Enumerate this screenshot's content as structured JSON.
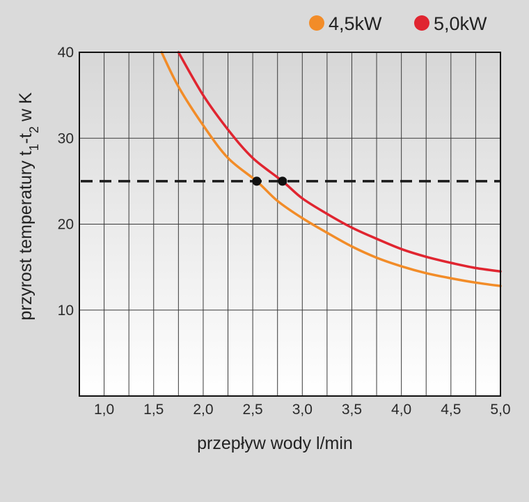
{
  "chart_data": {
    "type": "line",
    "xlabel": "przepływ wody l/min",
    "ylabel": {
      "text_1": "przyrost temperatury t",
      "sub_1": "1",
      "dash": "-t",
      "sub_2": "2",
      "text_2": " w K"
    },
    "xlim": [
      0.75,
      5.0
    ],
    "ylim": [
      0,
      40
    ],
    "x_ticks": [
      "1,0",
      "1,5",
      "2,0",
      "2,5",
      "3,0",
      "3,5",
      "4,0",
      "4,5",
      "5,0"
    ],
    "y_ticks": [
      "10",
      "20",
      "30",
      "40"
    ],
    "grid": "vertical every 0.25 l/min, horizontal every 10 K",
    "legend_position": "top-right",
    "series": [
      {
        "name": "4,5kW",
        "color": "#f28c28",
        "points": [
          [
            1.58,
            40
          ],
          [
            1.75,
            36
          ],
          [
            2.0,
            31.5
          ],
          [
            2.25,
            27.7
          ],
          [
            2.54,
            25
          ],
          [
            2.75,
            22.7
          ],
          [
            3.0,
            20.7
          ],
          [
            3.25,
            19.0
          ],
          [
            3.5,
            17.4
          ],
          [
            3.75,
            16.1
          ],
          [
            4.0,
            15.1
          ],
          [
            4.25,
            14.3
          ],
          [
            4.5,
            13.7
          ],
          [
            4.75,
            13.2
          ],
          [
            5.0,
            12.8
          ]
        ]
      },
      {
        "name": "5,0kW",
        "color": "#e02530",
        "points": [
          [
            1.75,
            40
          ],
          [
            2.0,
            35
          ],
          [
            2.25,
            31
          ],
          [
            2.5,
            27.7
          ],
          [
            2.8,
            25
          ],
          [
            3.0,
            23.0
          ],
          [
            3.25,
            21.2
          ],
          [
            3.5,
            19.6
          ],
          [
            3.75,
            18.3
          ],
          [
            4.0,
            17.1
          ],
          [
            4.25,
            16.2
          ],
          [
            4.5,
            15.5
          ],
          [
            4.75,
            14.9
          ],
          [
            5.0,
            14.5
          ]
        ]
      }
    ],
    "reference_line": {
      "y": 25,
      "style": "dashed",
      "color": "#1a1a1a"
    },
    "markers": [
      {
        "x": 2.54,
        "y": 25,
        "series": "4,5kW"
      },
      {
        "x": 2.8,
        "y": 25,
        "series": "5,0kW"
      }
    ]
  }
}
